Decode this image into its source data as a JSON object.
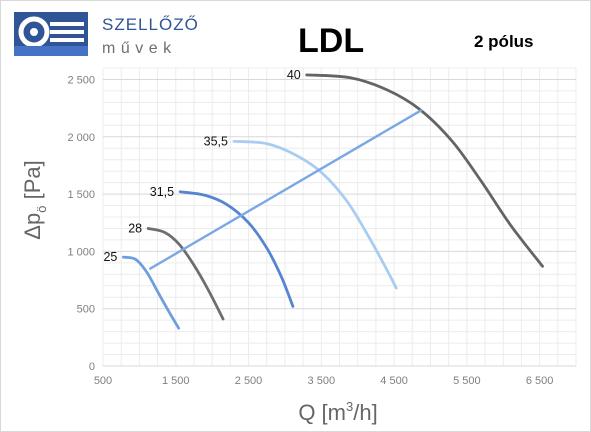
{
  "logo": {
    "brand_top": "SZELLŐZŐ",
    "brand_bottom": "művek"
  },
  "title": "LDL",
  "subtitle": "2 pólus",
  "chart_data": {
    "type": "line",
    "xlabel_base": "Q [m",
    "xlabel_sup": "3",
    "xlabel_end": "/h]",
    "ylabel_base": "Δp",
    "ylabel_sub": "ö",
    "ylabel_end": " [Pa]",
    "xlim": [
      500,
      7000
    ],
    "ylim": [
      0,
      2600
    ],
    "x_ticks": [
      500,
      1500,
      2500,
      3500,
      4500,
      5500,
      6500
    ],
    "x_tick_labels": [
      "500",
      "1 500",
      "2 500",
      "3 500",
      "4 500",
      "5 500",
      "6 500"
    ],
    "y_ticks": [
      0,
      500,
      1000,
      1500,
      2000,
      2500
    ],
    "y_tick_labels": [
      "0",
      "500",
      "1 000",
      "1 500",
      "2 000",
      "2 500"
    ],
    "grid": true,
    "series": [
      {
        "name": "25",
        "color": "#6d9ee0",
        "points": [
          [
            780,
            950
          ],
          [
            950,
            930
          ],
          [
            1100,
            820
          ],
          [
            1250,
            650
          ],
          [
            1400,
            480
          ],
          [
            1540,
            330
          ]
        ]
      },
      {
        "name": "28",
        "color": "#6e6e6e",
        "points": [
          [
            1120,
            1200
          ],
          [
            1350,
            1165
          ],
          [
            1550,
            1060
          ],
          [
            1750,
            880
          ],
          [
            1950,
            660
          ],
          [
            2150,
            410
          ]
        ]
      },
      {
        "name": "31,5",
        "color": "#5585d0",
        "points": [
          [
            1560,
            1520
          ],
          [
            1900,
            1490
          ],
          [
            2200,
            1410
          ],
          [
            2500,
            1250
          ],
          [
            2750,
            1030
          ],
          [
            2950,
            780
          ],
          [
            3110,
            520
          ]
        ]
      },
      {
        "name": "35,5",
        "color": "#a9cdf0",
        "points": [
          [
            2300,
            1960
          ],
          [
            2750,
            1940
          ],
          [
            3150,
            1840
          ],
          [
            3500,
            1690
          ],
          [
            3850,
            1440
          ],
          [
            4150,
            1130
          ],
          [
            4400,
            840
          ],
          [
            4530,
            680
          ]
        ]
      },
      {
        "name": "40",
        "color": "#646464",
        "points": [
          [
            3300,
            2540
          ],
          [
            3900,
            2515
          ],
          [
            4400,
            2410
          ],
          [
            4850,
            2240
          ],
          [
            5300,
            1960
          ],
          [
            5700,
            1610
          ],
          [
            6100,
            1230
          ],
          [
            6540,
            870
          ]
        ]
      },
      {
        "name": "",
        "color": "#7aa8e6",
        "points": [
          [
            1150,
            850
          ],
          [
            4870,
            2230
          ]
        ]
      }
    ]
  }
}
